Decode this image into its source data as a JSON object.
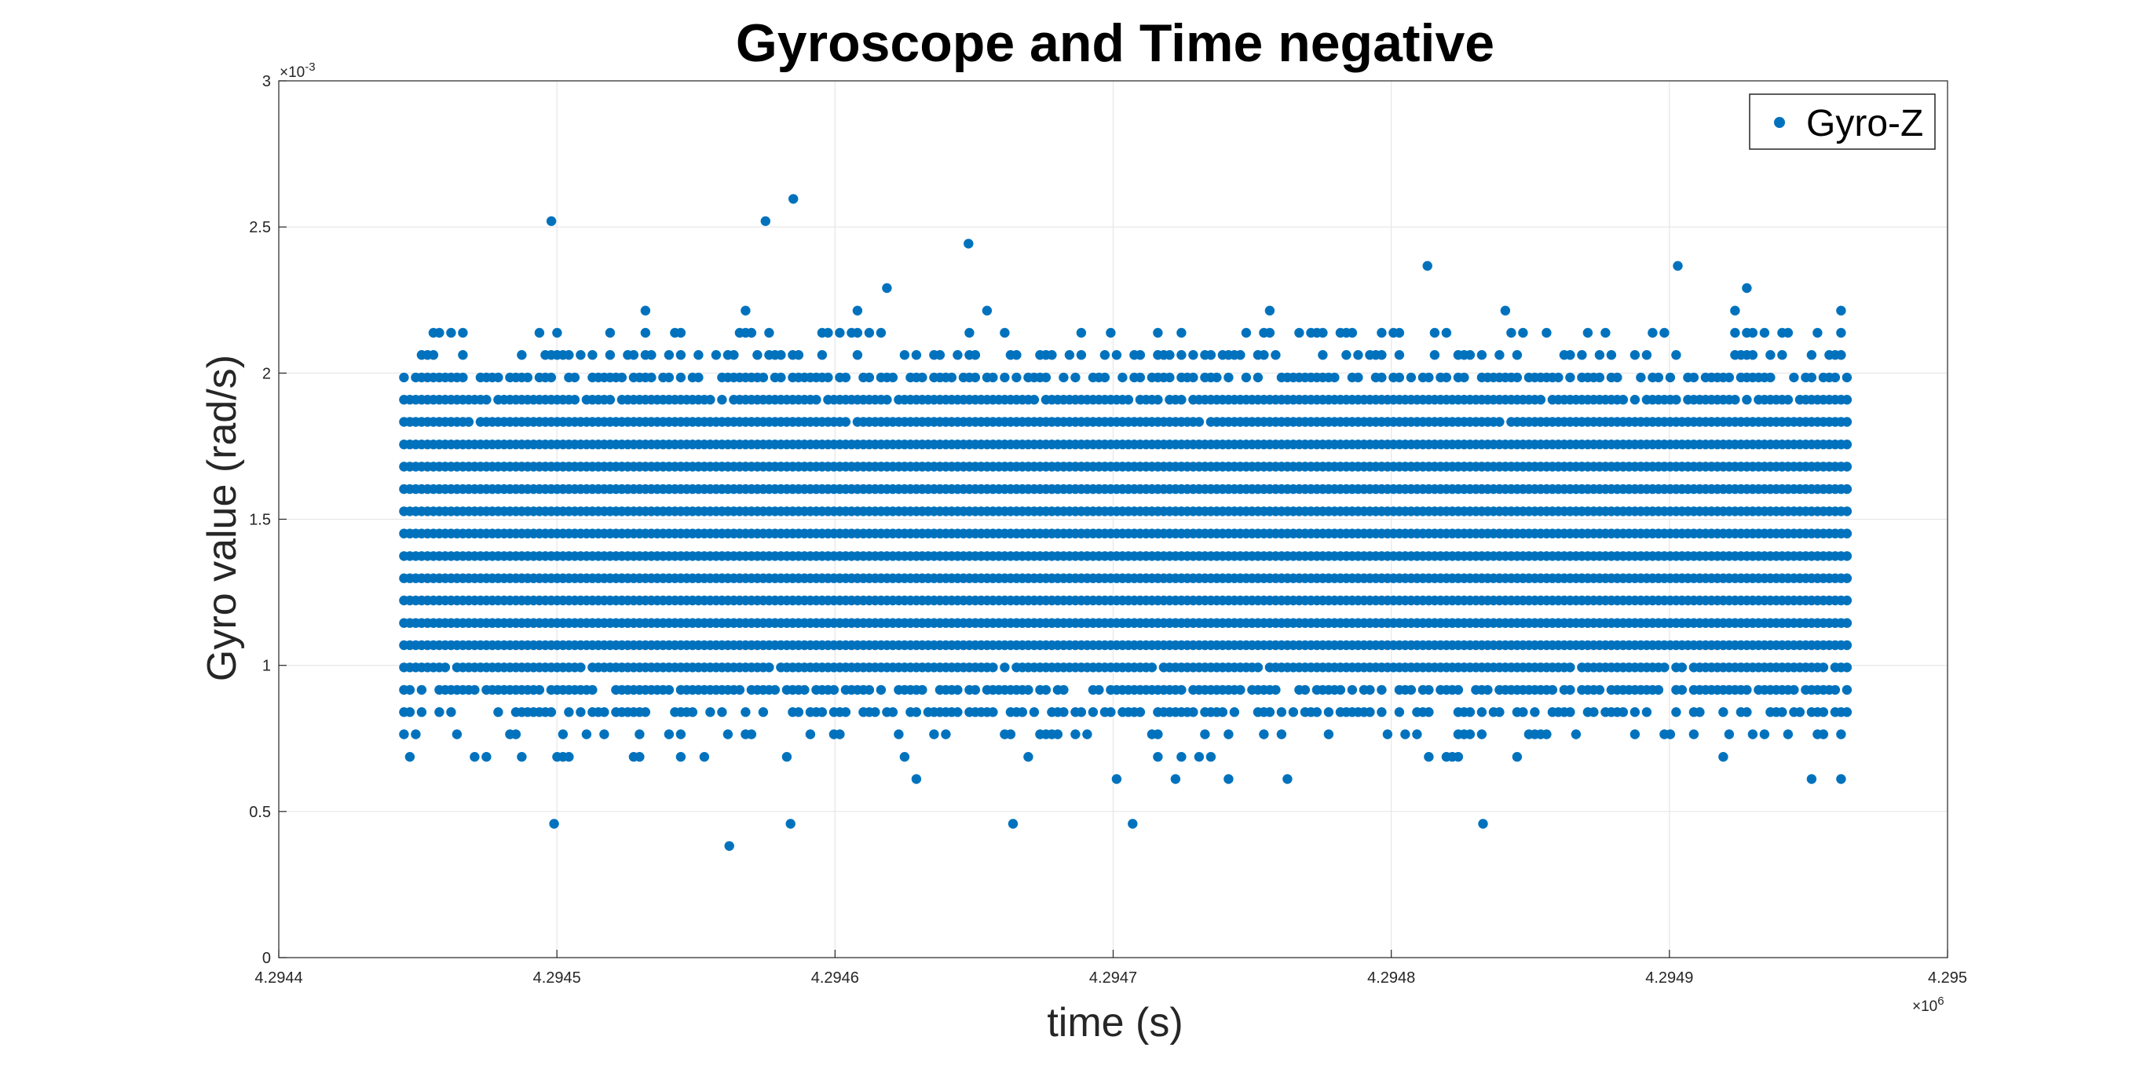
{
  "chart_data": {
    "type": "scatter",
    "title": "Gyroscope and Time negative",
    "xlabel": "time (s)",
    "ylabel": "Gyro value (rad/s)",
    "x_exponent_label": "×10^6",
    "y_exponent_label": "×10^-3",
    "xlim": [
      4.2944,
      4.295
    ],
    "ylim": [
      0,
      0.003
    ],
    "x_ticks": [
      "4.2944",
      "4.2945",
      "4.2946",
      "4.2947",
      "4.2948",
      "4.2949",
      "4.295"
    ],
    "y_ticks": [
      "0",
      "0.5",
      "1",
      "1.5",
      "2",
      "2.5",
      "3"
    ],
    "grid": true,
    "legend_position": "top-right",
    "series": [
      {
        "name": "Gyro-Z",
        "color": "#0072BD",
        "marker": "dot",
        "x_range_data_units": [
          4.294445,
          4.294965
        ],
        "y_levels": [
          0.000382,
          0.000458,
          0.000535,
          0.000611,
          0.000687,
          0.000764,
          0.00084,
          0.000916,
          0.000993,
          0.001069,
          0.001145,
          0.001222,
          0.001298,
          0.001374,
          0.001451,
          0.001527,
          0.001603,
          0.00168,
          0.001756,
          0.001833,
          0.001909,
          0.001985,
          0.002062,
          0.002138,
          0.002214,
          0.002291,
          0.002367,
          0.002443,
          0.00252,
          0.002596
        ],
        "outliers": [
          {
            "x": 4.294498,
            "y": 0.00252
          },
          {
            "x": 4.294575,
            "y": 0.00252
          },
          {
            "x": 4.294585,
            "y": 0.002596
          },
          {
            "x": 4.294648,
            "y": 0.002443
          },
          {
            "x": 4.294813,
            "y": 0.002367
          },
          {
            "x": 4.294903,
            "y": 0.002367
          },
          {
            "x": 4.294499,
            "y": 0.000458
          },
          {
            "x": 4.294562,
            "y": 0.000382
          },
          {
            "x": 4.294584,
            "y": 0.000458
          },
          {
            "x": 4.294664,
            "y": 0.000458
          },
          {
            "x": 4.294707,
            "y": 0.000458
          },
          {
            "x": 4.294833,
            "y": 0.000458
          }
        ]
      }
    ]
  }
}
